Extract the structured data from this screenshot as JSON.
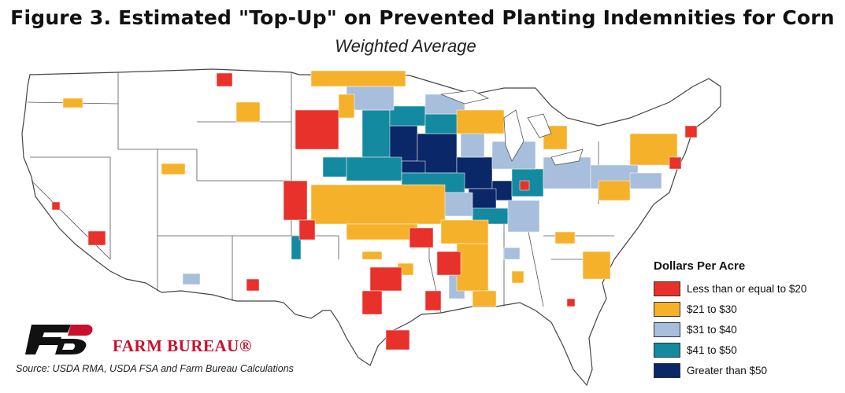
{
  "title": "Figure 3. Estimated \"Top-Up\" on Prevented Planting Indemnities for Corn",
  "subtitle": "Weighted Average",
  "legend": {
    "title": "Dollars Per Acre",
    "items": [
      {
        "label": "Less than or equal to $20",
        "color": "#e8312b"
      },
      {
        "label": "$21 to $30",
        "color": "#f6b12a"
      },
      {
        "label": "$31 to $40",
        "color": "#a7bedc"
      },
      {
        "label": "$41 to $50",
        "color": "#148aa0"
      },
      {
        "label": "Greater than $50",
        "color": "#0a2868"
      }
    ]
  },
  "brand": "FARM BUREAU®",
  "source": "Source: USDA RMA, USDA FSA and Farm Bureau Calculations",
  "map": {
    "type": "county choropleth",
    "region": "Contiguous United States",
    "category_colors": {
      "le20": "#e8312b",
      "21_30": "#f6b12a",
      "31_40": "#a7bedc",
      "41_50": "#148aa0",
      "gt50": "#0a2868"
    }
  }
}
